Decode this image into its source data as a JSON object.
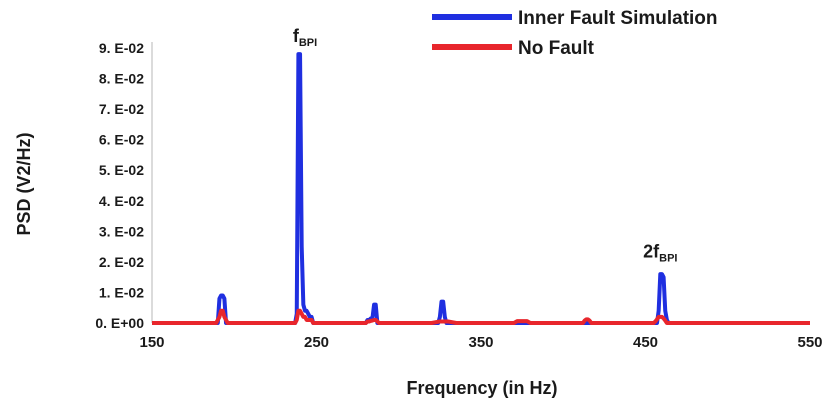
{
  "chart_data": {
    "type": "line",
    "title": "",
    "xlabel": "Frequency (in Hz)",
    "ylabel": "PSD (V2/Hz)",
    "xlim": [
      150,
      550
    ],
    "ylim": [
      0,
      0.09
    ],
    "x_ticks": [
      150,
      250,
      350,
      450,
      550
    ],
    "x_tick_labels": [
      "150",
      "250",
      "350",
      "450",
      "550"
    ],
    "y_ticks": [
      0,
      0.01,
      0.02,
      0.03,
      0.04,
      0.05,
      0.06,
      0.07,
      0.08,
      0.09
    ],
    "y_tick_labels": [
      "0. E+00",
      "1. E-02",
      "2. E-02",
      "3. E-02",
      "4. E-02",
      "5. E-02",
      "6. E-02",
      "7. E-02",
      "8. E-02",
      "9. E-02"
    ],
    "grid": false,
    "legend_position": "top-right",
    "series": [
      {
        "name": "Inner Fault Simulation",
        "color": "#1f2fe0",
        "x": [
          150,
          190,
          191,
          192,
          193,
          194,
          195,
          237,
          238,
          239,
          240,
          241,
          242,
          243,
          244,
          245,
          246,
          247,
          248,
          280,
          281,
          282,
          283,
          284,
          285,
          286,
          287,
          324,
          325,
          326,
          327,
          328,
          329,
          400,
          457,
          458,
          459,
          460,
          461,
          462,
          463,
          464,
          550
        ],
        "y": [
          0,
          0,
          0.008,
          0.009,
          0.009,
          0.008,
          0,
          0,
          0.003,
          0.088,
          0.088,
          0.025,
          0.006,
          0.004,
          0.004,
          0.003,
          0.002,
          0.002,
          0,
          0,
          0.001,
          0.001,
          0.0015,
          0.0015,
          0.006,
          0.006,
          0,
          0,
          0.002,
          0.007,
          0.007,
          0.002,
          0,
          0,
          0,
          0.004,
          0.016,
          0.016,
          0.015,
          0.004,
          0.001,
          0,
          0
        ]
      },
      {
        "name": "No Fault",
        "color": "#e8262c",
        "x": [
          150,
          189,
          190,
          191,
          192,
          193,
          194,
          195,
          196,
          237,
          238,
          239,
          240,
          241,
          242,
          243,
          244,
          245,
          246,
          247,
          248,
          280,
          281,
          282,
          283,
          284,
          285,
          286,
          287,
          288,
          320,
          325,
          330,
          335,
          370,
          372,
          375,
          378,
          380,
          412,
          413,
          414,
          415,
          416,
          417,
          455,
          456,
          457,
          458,
          459,
          460,
          461,
          462,
          463,
          550
        ],
        "y": [
          0,
          0,
          0.001,
          0.002,
          0.004,
          0.004,
          0.002,
          0.001,
          0,
          0,
          0.001,
          0.004,
          0.004,
          0.003,
          0.002,
          0.002,
          0.001,
          0.001,
          0.001,
          0.001,
          0,
          0,
          0.0005,
          0.0005,
          0.0007,
          0.0008,
          0.001,
          0.001,
          0.0005,
          0,
          0,
          0.0005,
          0.0005,
          0,
          0,
          0.0006,
          0.0006,
          0.0006,
          0,
          0,
          0.0008,
          0.0012,
          0.0012,
          0.0008,
          0,
          0,
          0.0005,
          0.0012,
          0.002,
          0.002,
          0.002,
          0.0015,
          0.0008,
          0,
          0
        ]
      }
    ],
    "annotations": [
      {
        "main": "f",
        "sub": "BPI",
        "x": 243,
        "y": 0.09
      },
      {
        "main": "2f",
        "sub": "BPI",
        "x": 459,
        "y": 0.0195
      }
    ]
  }
}
